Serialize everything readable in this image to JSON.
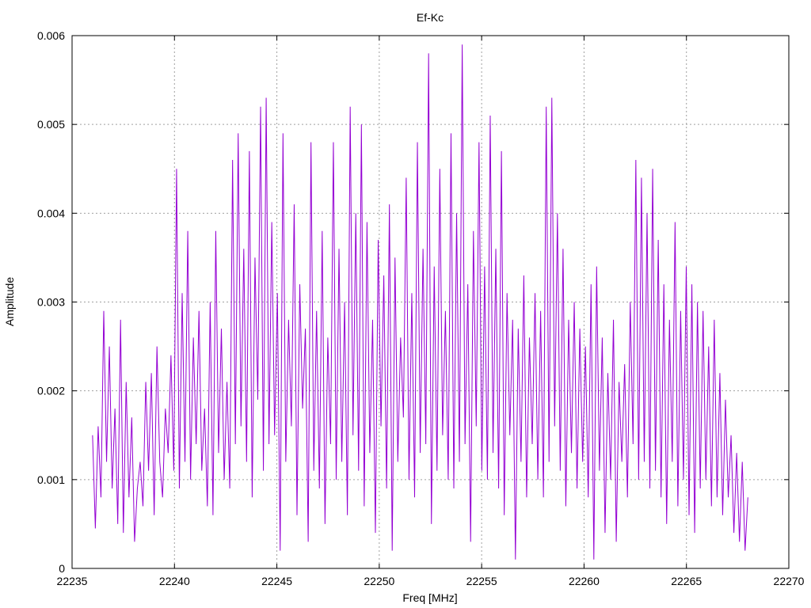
{
  "chart_data": {
    "type": "line",
    "title": "Ef-Kc",
    "xlabel": "Freq [MHz]",
    "ylabel": "Amplitude",
    "xlim": [
      22235,
      22270
    ],
    "ylim": [
      0,
      0.006
    ],
    "x_ticks": [
      22235,
      22240,
      22245,
      22250,
      22255,
      22260,
      22265,
      22270
    ],
    "x_tick_labels": [
      "22235",
      "22240",
      "22245",
      "22250",
      "22255",
      "22260",
      "22265",
      "22270"
    ],
    "y_ticks": [
      0,
      0.001,
      0.002,
      0.003,
      0.004,
      0.005,
      0.006
    ],
    "y_tick_labels": [
      "0",
      "0.001",
      "0.002",
      "0.003",
      "0.004",
      "0.005",
      "0.006"
    ],
    "grid": true,
    "line_color": "#9400d3",
    "series": [
      {
        "x_start": 22236.0,
        "x_end": 22268.0,
        "values": [
          0.0015,
          0.00045,
          0.0016,
          0.0008,
          0.0029,
          0.0012,
          0.0025,
          0.0009,
          0.0018,
          0.0005,
          0.0028,
          0.0004,
          0.0021,
          0.0008,
          0.0017,
          0.0003,
          0.0009,
          0.0012,
          0.0007,
          0.0021,
          0.0011,
          0.0022,
          0.0006,
          0.0025,
          0.0012,
          0.0008,
          0.0018,
          0.0013,
          0.0024,
          0.0011,
          0.0045,
          0.0009,
          0.0031,
          0.0012,
          0.0038,
          0.001,
          0.0026,
          0.0014,
          0.0029,
          0.0011,
          0.0018,
          0.0007,
          0.003,
          0.0006,
          0.0038,
          0.0013,
          0.0027,
          0.001,
          0.0021,
          0.0009,
          0.0046,
          0.0014,
          0.0049,
          0.0016,
          0.0036,
          0.0012,
          0.0047,
          0.0008,
          0.0035,
          0.0019,
          0.0052,
          0.0011,
          0.0053,
          0.0014,
          0.0039,
          0.0015,
          0.0031,
          0.0002,
          0.0049,
          0.0012,
          0.0028,
          0.0016,
          0.0041,
          0.0006,
          0.0032,
          0.0018,
          0.0027,
          0.0003,
          0.0048,
          0.0011,
          0.0029,
          0.0009,
          0.0038,
          0.0005,
          0.0026,
          0.0014,
          0.0048,
          0.001,
          0.0036,
          0.0012,
          0.003,
          0.0006,
          0.0052,
          0.0015,
          0.004,
          0.0011,
          0.005,
          0.0007,
          0.0039,
          0.0013,
          0.0028,
          0.0004,
          0.0037,
          0.0016,
          0.0033,
          0.0009,
          0.0041,
          0.0002,
          0.0035,
          0.0012,
          0.0026,
          0.0017,
          0.0044,
          0.001,
          0.0031,
          0.0008,
          0.0048,
          0.0013,
          0.0036,
          0.0014,
          0.0058,
          0.0005,
          0.0034,
          0.0011,
          0.0045,
          0.0015,
          0.0029,
          0.001,
          0.0049,
          0.0009,
          0.004,
          0.0012,
          0.0059,
          0.0014,
          0.0032,
          0.0003,
          0.0038,
          0.0016,
          0.0048,
          0.0011,
          0.0034,
          0.001,
          0.0051,
          0.0013,
          0.0036,
          0.0009,
          0.0047,
          0.0006,
          0.0031,
          0.0015,
          0.0028,
          0.0001,
          0.0027,
          0.0012,
          0.0033,
          0.0008,
          0.0026,
          0.0014,
          0.0031,
          0.001,
          0.0029,
          0.0008,
          0.0052,
          0.0012,
          0.0053,
          0.0016,
          0.004,
          0.0011,
          0.0036,
          0.0007,
          0.0028,
          0.0013,
          0.003,
          0.0009,
          0.0027,
          0.0012,
          0.0025,
          0.0008,
          0.0032,
          0.0001,
          0.0034,
          0.0011,
          0.0026,
          0.0004,
          0.0022,
          0.001,
          0.0028,
          0.0003,
          0.0021,
          0.0012,
          0.0023,
          0.0008,
          0.003,
          0.0014,
          0.0046,
          0.001,
          0.0044,
          0.0012,
          0.004,
          0.0009,
          0.0045,
          0.0011,
          0.0037,
          0.0008,
          0.0032,
          0.0005,
          0.0028,
          0.0012,
          0.0039,
          0.0007,
          0.0029,
          0.001,
          0.0034,
          0.0006,
          0.0032,
          0.0004,
          0.003,
          0.0009,
          0.0029,
          0.001,
          0.0025,
          0.0007,
          0.0028,
          0.0008,
          0.0022,
          0.0006,
          0.0019,
          0.0008,
          0.0015,
          0.0004,
          0.0013,
          0.0003,
          0.0012,
          0.0002,
          0.0008
        ]
      }
    ]
  }
}
